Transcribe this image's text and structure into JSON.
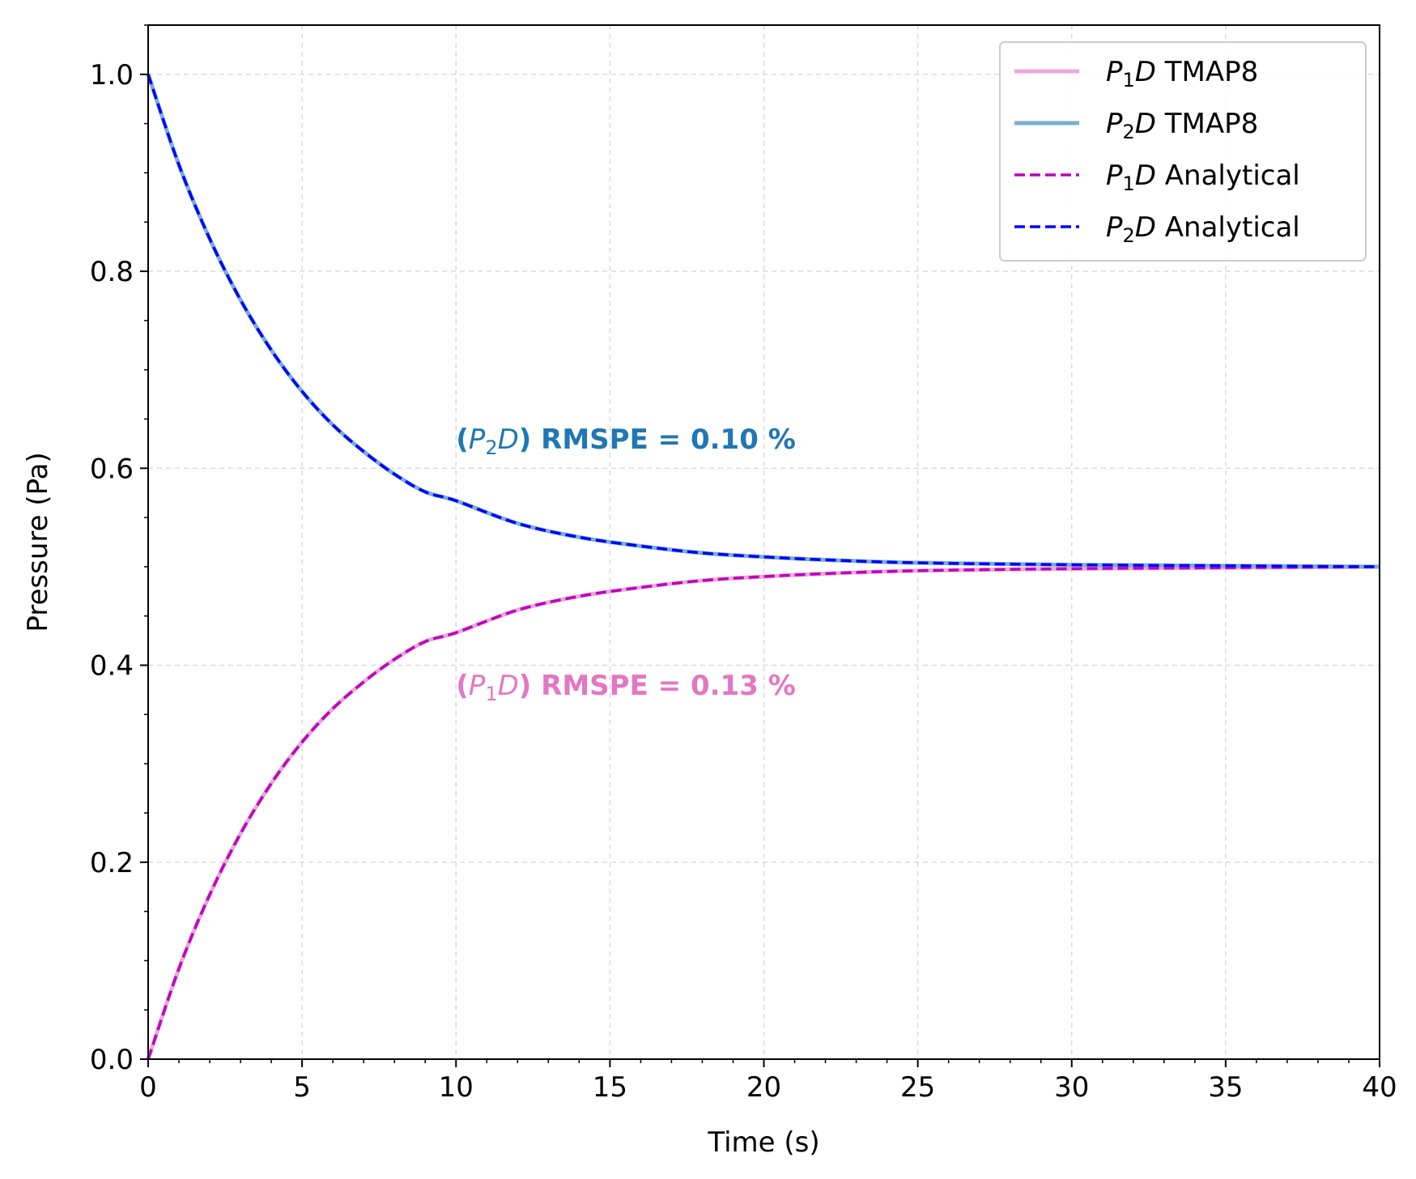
{
  "chart_data": {
    "type": "line",
    "xlabel": "Time (s)",
    "ylabel": "Pressure (Pa)",
    "xlim": [
      0,
      40
    ],
    "ylim": [
      0,
      1.05
    ],
    "xticks": [
      0,
      5,
      10,
      15,
      20,
      25,
      30,
      35,
      40
    ],
    "xtick_labels": [
      "0",
      "5",
      "10",
      "15",
      "20",
      "25",
      "30",
      "35",
      "40"
    ],
    "yticks": [
      0.0,
      0.2,
      0.4,
      0.6,
      0.8,
      1.0
    ],
    "ytick_labels": [
      "0.0",
      "0.2",
      "0.4",
      "0.6",
      "0.8",
      "1.0"
    ],
    "grid": true,
    "legend_position": "top-right",
    "x": [
      0,
      1,
      2,
      3,
      4,
      5,
      6,
      7,
      8,
      9,
      10,
      12,
      14,
      16,
      18,
      20,
      22,
      25,
      30,
      35,
      40
    ],
    "series": [
      {
        "name": "P1D TMAP8",
        "legend_parts": {
          "base": "P",
          "sub": "1",
          "var": "D",
          "rest": " TMAP8"
        },
        "color": "#e9a9d8",
        "style": "solid",
        "values": [
          0.0,
          0.092,
          0.167,
          0.229,
          0.28,
          0.322,
          0.356,
          0.383,
          0.406,
          0.424,
          0.433,
          0.456,
          0.47,
          0.479,
          0.486,
          0.49,
          0.493,
          0.496,
          0.498,
          0.499,
          0.5
        ]
      },
      {
        "name": "P2D TMAP8",
        "legend_parts": {
          "base": "P",
          "sub": "2",
          "var": "D",
          "rest": " TMAP8"
        },
        "color": "#79aed6",
        "style": "solid",
        "values": [
          1.0,
          0.908,
          0.833,
          0.771,
          0.72,
          0.678,
          0.644,
          0.617,
          0.594,
          0.576,
          0.567,
          0.544,
          0.53,
          0.521,
          0.514,
          0.51,
          0.507,
          0.504,
          0.502,
          0.501,
          0.5
        ]
      },
      {
        "name": "P1D Analytical",
        "legend_parts": {
          "base": "P",
          "sub": "1",
          "var": "D",
          "rest": " Analytical"
        },
        "color": "#bf00bf",
        "style": "dashed",
        "values": [
          0.0,
          0.092,
          0.167,
          0.229,
          0.28,
          0.322,
          0.356,
          0.383,
          0.406,
          0.424,
          0.433,
          0.456,
          0.47,
          0.479,
          0.486,
          0.49,
          0.493,
          0.496,
          0.498,
          0.499,
          0.5
        ]
      },
      {
        "name": "P2D Analytical",
        "legend_parts": {
          "base": "P",
          "sub": "2",
          "var": "D",
          "rest": " Analytical"
        },
        "color": "#0000ff",
        "style": "dashed",
        "values": [
          1.0,
          0.908,
          0.833,
          0.771,
          0.72,
          0.678,
          0.644,
          0.617,
          0.594,
          0.576,
          0.567,
          0.544,
          0.53,
          0.521,
          0.514,
          0.51,
          0.507,
          0.504,
          0.502,
          0.501,
          0.5
        ]
      }
    ],
    "annotations": [
      {
        "open": "(",
        "base": "P",
        "sub": "2",
        "var": "D",
        "close": ")",
        "rest": " RMSPE = 0.10 %",
        "x": 10,
        "y": 0.63,
        "color": "#1f77b4"
      },
      {
        "open": "(",
        "base": "P",
        "sub": "1",
        "var": "D",
        "close": ")",
        "rest": " RMSPE = 0.13 %",
        "x": 10,
        "y": 0.38,
        "color": "#e377c2"
      }
    ]
  }
}
